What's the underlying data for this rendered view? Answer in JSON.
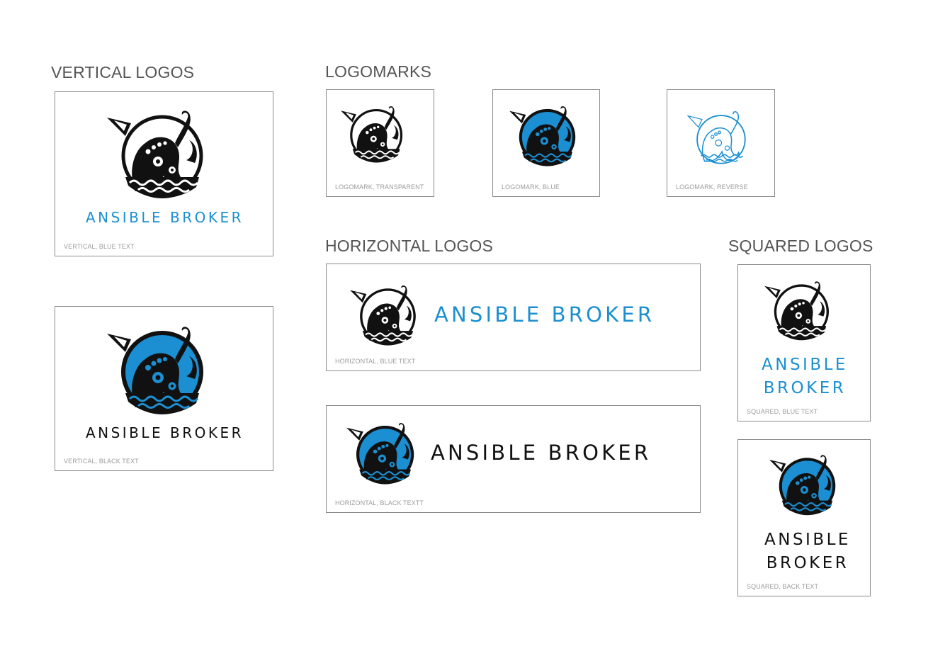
{
  "colors": {
    "brand_blue": "#1b8fd2",
    "ink": "#111111",
    "caption_gray": "#9b9b9b",
    "border": "#8a8a8a"
  },
  "brand_name": "ANSIBLE BROKER",
  "brand_name_line1": "ANSIBLE",
  "brand_name_line2": "BROKER",
  "sections": {
    "vertical": "VERTICAL LOGOS",
    "logomarks": "LOGOMARKS",
    "horizontal": "HORIZONTAL LOGOS",
    "squared": "SQUARED LOGOS"
  },
  "captions": {
    "vertical_blue": "VERTICAL, BLUE TEXT",
    "vertical_black": "VERTICAL, BLACK TEXT",
    "mark_transparent": "LOGOMARK, TRANSPARENT",
    "mark_blue": "LOGOMARK, BLUE",
    "mark_reverse": "LOGOMARK, REVERSE",
    "horizontal_blue": "HORIZONTAL, BLUE TEXT",
    "horizontal_black": "HORIZONTAL, BLACK TEXTT",
    "squared_blue": "SQUARED, BLUE TEXT",
    "squared_black": "SQUARED, BACK TEXT"
  },
  "icons": {
    "logomark": "octopus-logomark-icon"
  }
}
